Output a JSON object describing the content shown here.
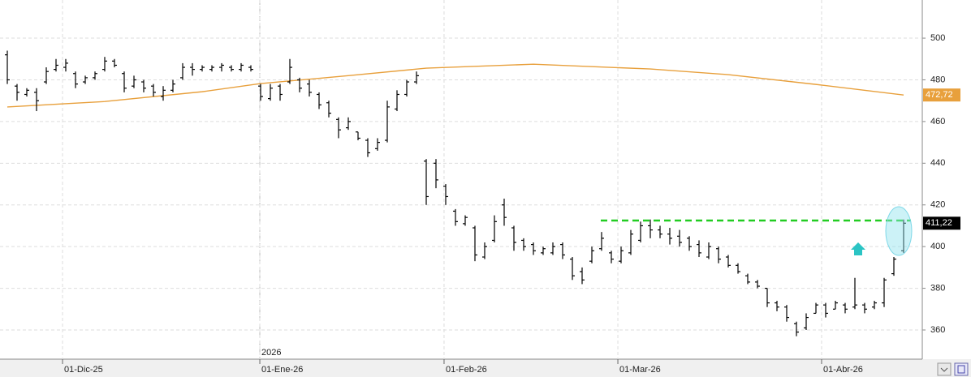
{
  "chart_data": {
    "type": "ohlc",
    "year_label": "2026",
    "color": "#000000",
    "open": [
      492,
      477,
      473,
      474,
      479,
      485,
      486,
      483,
      479,
      481,
      485,
      489,
      483,
      477,
      479,
      477,
      472,
      475,
      481,
      486,
      485,
      485,
      486,
      486,
      485,
      486,
      477,
      471,
      477,
      479,
      480,
      478,
      473,
      469,
      461,
      457,
      455,
      451,
      447,
      451,
      466,
      473,
      479,
      441,
      440,
      429,
      417,
      411,
      409,
      395,
      403,
      420,
      409,
      403,
      401,
      397,
      397,
      401,
      394,
      388,
      393,
      399,
      397,
      393,
      397,
      403,
      410,
      408,
      406,
      405,
      404,
      401,
      395,
      399,
      395,
      391,
      386,
      383,
      380,
      373,
      371,
      363,
      361,
      368,
      372,
      370,
      372,
      371,
      372,
      371,
      373,
      387,
      398
    ],
    "high": [
      494,
      478,
      476,
      476,
      486,
      490,
      490,
      484,
      482,
      484,
      491,
      490,
      484,
      482,
      480,
      478,
      477,
      480,
      488,
      488,
      487,
      487,
      488,
      487,
      488,
      487,
      478,
      478,
      478,
      490,
      481,
      480,
      474,
      470,
      462,
      462,
      455,
      452,
      452,
      470,
      475,
      480,
      484,
      442,
      442,
      430,
      418,
      415,
      410,
      402,
      415,
      423,
      410,
      404,
      402,
      400,
      402,
      402,
      395,
      390,
      400,
      407,
      398,
      400,
      408,
      412,
      413,
      410,
      409,
      408,
      405,
      403,
      402,
      400,
      396,
      392,
      387,
      384,
      380,
      374,
      372,
      364,
      368,
      373,
      373,
      374,
      373,
      385,
      373,
      374,
      385,
      395,
      413
    ],
    "low": [
      478,
      470,
      472,
      465,
      478,
      484,
      484,
      476,
      478,
      480,
      484,
      486,
      474,
      476,
      474,
      472,
      470,
      474,
      480,
      482,
      484,
      484,
      484,
      484,
      484,
      484,
      470,
      470,
      470,
      478,
      474,
      472,
      466,
      462,
      452,
      456,
      451,
      443,
      446,
      450,
      465,
      472,
      478,
      420,
      428,
      420,
      410,
      410,
      393,
      394,
      402,
      410,
      398,
      398,
      396,
      396,
      396,
      394,
      384,
      382,
      392,
      398,
      392,
      392,
      396,
      402,
      404,
      404,
      401,
      400,
      398,
      395,
      394,
      392,
      390,
      387,
      382,
      380,
      371,
      369,
      364,
      357,
      360,
      368,
      366,
      370,
      368,
      370,
      368,
      370,
      371,
      386,
      397
    ],
    "close": [
      480,
      474,
      475,
      470,
      484,
      487,
      488,
      478,
      481,
      483,
      489,
      487,
      476,
      480,
      476,
      474,
      475,
      478,
      486,
      485,
      486,
      486,
      487,
      485,
      487,
      485,
      472,
      476,
      473,
      486,
      476,
      474,
      468,
      464,
      456,
      460,
      452,
      445,
      450,
      467,
      473,
      479,
      482,
      424,
      432,
      424,
      412,
      414,
      396,
      400,
      412,
      414,
      402,
      400,
      398,
      399,
      400,
      396,
      386,
      384,
      398,
      404,
      394,
      398,
      406,
      410,
      408,
      406,
      404,
      402,
      400,
      397,
      400,
      394,
      391,
      388,
      383,
      381,
      373,
      371,
      366,
      359,
      366,
      372,
      368,
      373,
      370,
      372,
      370,
      373,
      384,
      394,
      411.22
    ],
    "ma": {
      "color": "#e8a03c",
      "x": [
        0,
        10,
        20,
        26,
        35,
        43,
        54,
        66,
        74,
        83,
        92
      ],
      "values": [
        467,
        469.6,
        474.3,
        478.2,
        482,
        485.6,
        487.5,
        485.2,
        482.5,
        477.8,
        472.72
      ]
    },
    "level": {
      "value": 412.5,
      "color": "#22cc22"
    },
    "price_tags": [
      {
        "value": 472.72,
        "label": "472,72",
        "color": "#e8a03c"
      },
      {
        "value": 411.22,
        "label": "411,22",
        "color": "#000000"
      }
    ],
    "xticks": [
      {
        "value": 5.67,
        "label": "01-Dic-25"
      },
      {
        "value": 25.92,
        "label": "01-Ene-26"
      },
      {
        "value": 44.83,
        "label": "01-Feb-26"
      },
      {
        "value": 62.67,
        "label": "01-Mar-26"
      },
      {
        "value": 83.58,
        "label": "01-Abr-26"
      }
    ],
    "ylim": [
      346,
      518.3
    ],
    "yticks": [
      360,
      380,
      400,
      420,
      440,
      460,
      480,
      500
    ],
    "grid": true
  }
}
